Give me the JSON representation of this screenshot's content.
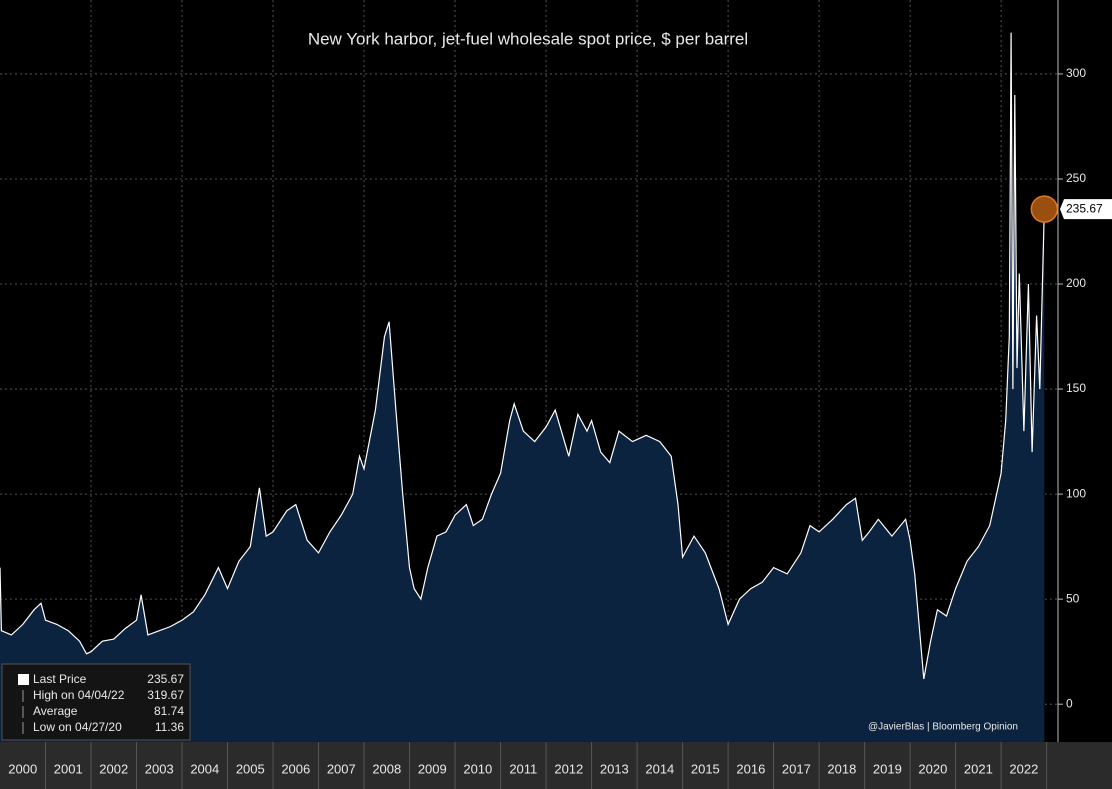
{
  "chart_data": {
    "type": "area",
    "title": "New York harbor, jet-fuel wholesale spot price, $ per barrel",
    "credit": "@JavierBlas | Bloomberg Opinion",
    "x": [
      2000.0,
      2000.03,
      2000.25,
      2000.5,
      2000.75,
      2000.9,
      2001.0,
      2001.25,
      2001.5,
      2001.75,
      2001.9,
      2002.0,
      2002.25,
      2002.5,
      2002.75,
      2003.0,
      2003.1,
      2003.25,
      2003.5,
      2003.75,
      2004.0,
      2004.25,
      2004.5,
      2004.8,
      2005.0,
      2005.25,
      2005.5,
      2005.7,
      2005.85,
      2006.0,
      2006.3,
      2006.5,
      2006.75,
      2007.0,
      2007.25,
      2007.5,
      2007.75,
      2007.9,
      2008.0,
      2008.25,
      2008.45,
      2008.55,
      2008.7,
      2008.85,
      2009.0,
      2009.1,
      2009.25,
      2009.4,
      2009.6,
      2009.8,
      2010.0,
      2010.25,
      2010.4,
      2010.6,
      2010.8,
      2011.0,
      2011.2,
      2011.3,
      2011.5,
      2011.75,
      2012.0,
      2012.2,
      2012.5,
      2012.7,
      2012.9,
      2013.0,
      2013.2,
      2013.4,
      2013.6,
      2013.9,
      2014.2,
      2014.5,
      2014.75,
      2014.9,
      2015.0,
      2015.25,
      2015.5,
      2015.8,
      2016.0,
      2016.25,
      2016.5,
      2016.75,
      2017.0,
      2017.3,
      2017.6,
      2017.8,
      2018.0,
      2018.3,
      2018.6,
      2018.8,
      2018.95,
      2019.1,
      2019.3,
      2019.6,
      2019.9,
      2020.0,
      2020.1,
      2020.3,
      2020.45,
      2020.6,
      2020.8,
      2021.0,
      2021.25,
      2021.5,
      2021.75,
      2021.9,
      2022.0,
      2022.1,
      2022.18,
      2022.22,
      2022.26,
      2022.3,
      2022.35,
      2022.4,
      2022.5,
      2022.6,
      2022.68,
      2022.78,
      2022.85,
      2022.95
    ],
    "series": [
      {
        "name": "Last Price",
        "color": "#ffffff",
        "fill": "#0c2340",
        "values": [
          65,
          35,
          33,
          38,
          45,
          48,
          40,
          38,
          35,
          30,
          24,
          25,
          30,
          31,
          36,
          40,
          52,
          33,
          35,
          37,
          40,
          44,
          52,
          65,
          55,
          68,
          75,
          103,
          80,
          82,
          92,
          95,
          78,
          72,
          82,
          90,
          100,
          118,
          112,
          140,
          175,
          182,
          140,
          100,
          65,
          55,
          50,
          65,
          80,
          82,
          90,
          95,
          85,
          88,
          100,
          110,
          135,
          143,
          130,
          125,
          132,
          140,
          118,
          138,
          130,
          135,
          120,
          115,
          130,
          125,
          128,
          125,
          118,
          95,
          70,
          80,
          72,
          55,
          38,
          50,
          55,
          58,
          65,
          62,
          72,
          85,
          82,
          88,
          95,
          98,
          78,
          82,
          88,
          80,
          88,
          78,
          62,
          12,
          30,
          45,
          42,
          55,
          68,
          75,
          85,
          100,
          110,
          135,
          175,
          319.67,
          150,
          290,
          160,
          205,
          130,
          200,
          120,
          185,
          150,
          235.67
        ]
      }
    ],
    "xlim": [
      2000.0,
      2023.25
    ],
    "xticks": [
      {
        "value": 2000.5,
        "label": "2000"
      },
      {
        "value": 2001.5,
        "label": "2001"
      },
      {
        "value": 2002.5,
        "label": "2002"
      },
      {
        "value": 2003.5,
        "label": "2003"
      },
      {
        "value": 2004.5,
        "label": "2004"
      },
      {
        "value": 2005.5,
        "label": "2005"
      },
      {
        "value": 2006.5,
        "label": "2006"
      },
      {
        "value": 2007.5,
        "label": "2007"
      },
      {
        "value": 2008.5,
        "label": "2008"
      },
      {
        "value": 2009.5,
        "label": "2009"
      },
      {
        "value": 2010.5,
        "label": "2010"
      },
      {
        "value": 2011.5,
        "label": "2011"
      },
      {
        "value": 2012.5,
        "label": "2012"
      },
      {
        "value": 2013.5,
        "label": "2013"
      },
      {
        "value": 2014.5,
        "label": "2014"
      },
      {
        "value": 2015.5,
        "label": "2015"
      },
      {
        "value": 2016.5,
        "label": "2016"
      },
      {
        "value": 2017.5,
        "label": "2017"
      },
      {
        "value": 2018.5,
        "label": "2018"
      },
      {
        "value": 2019.5,
        "label": "2019"
      },
      {
        "value": 2020.5,
        "label": "2020"
      },
      {
        "value": 2021.5,
        "label": "2021"
      },
      {
        "value": 2022.5,
        "label": "2022"
      }
    ],
    "ylim": [
      -18,
      335.2
    ],
    "yticks": [
      0,
      50,
      100,
      150,
      200,
      250,
      300
    ],
    "grid": true,
    "legend": "bottom-left",
    "stats": [
      {
        "label": "Last Price",
        "value": 235.67
      },
      {
        "label": "High on 04/04/22",
        "value": 319.67
      },
      {
        "label": "Average",
        "value": 81.74
      },
      {
        "label": "Low on 04/27/20",
        "value": 11.36
      }
    ]
  }
}
